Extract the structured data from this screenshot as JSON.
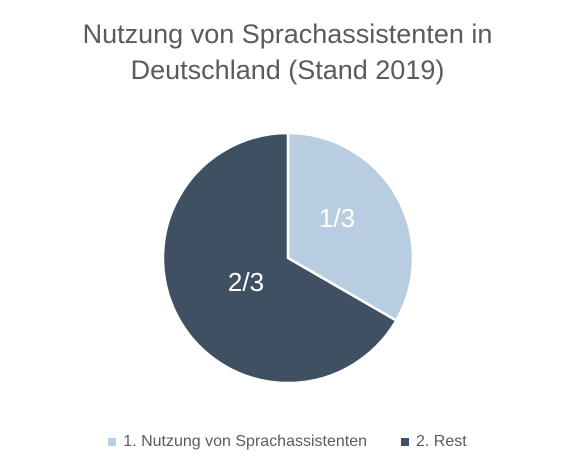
{
  "chart_data": {
    "type": "pie",
    "title_lines": [
      "Nutzung von Sprachassistenten in",
      "Deutschland (Stand 2019)"
    ],
    "categories": [
      "1. Nutzung von Sprachassistenten",
      "2. Rest"
    ],
    "values": [
      1,
      2
    ],
    "data_labels": [
      "1/3",
      "2/3"
    ],
    "colors": [
      "#b8cee0",
      "#3e5062"
    ],
    "legend_position": "bottom"
  }
}
